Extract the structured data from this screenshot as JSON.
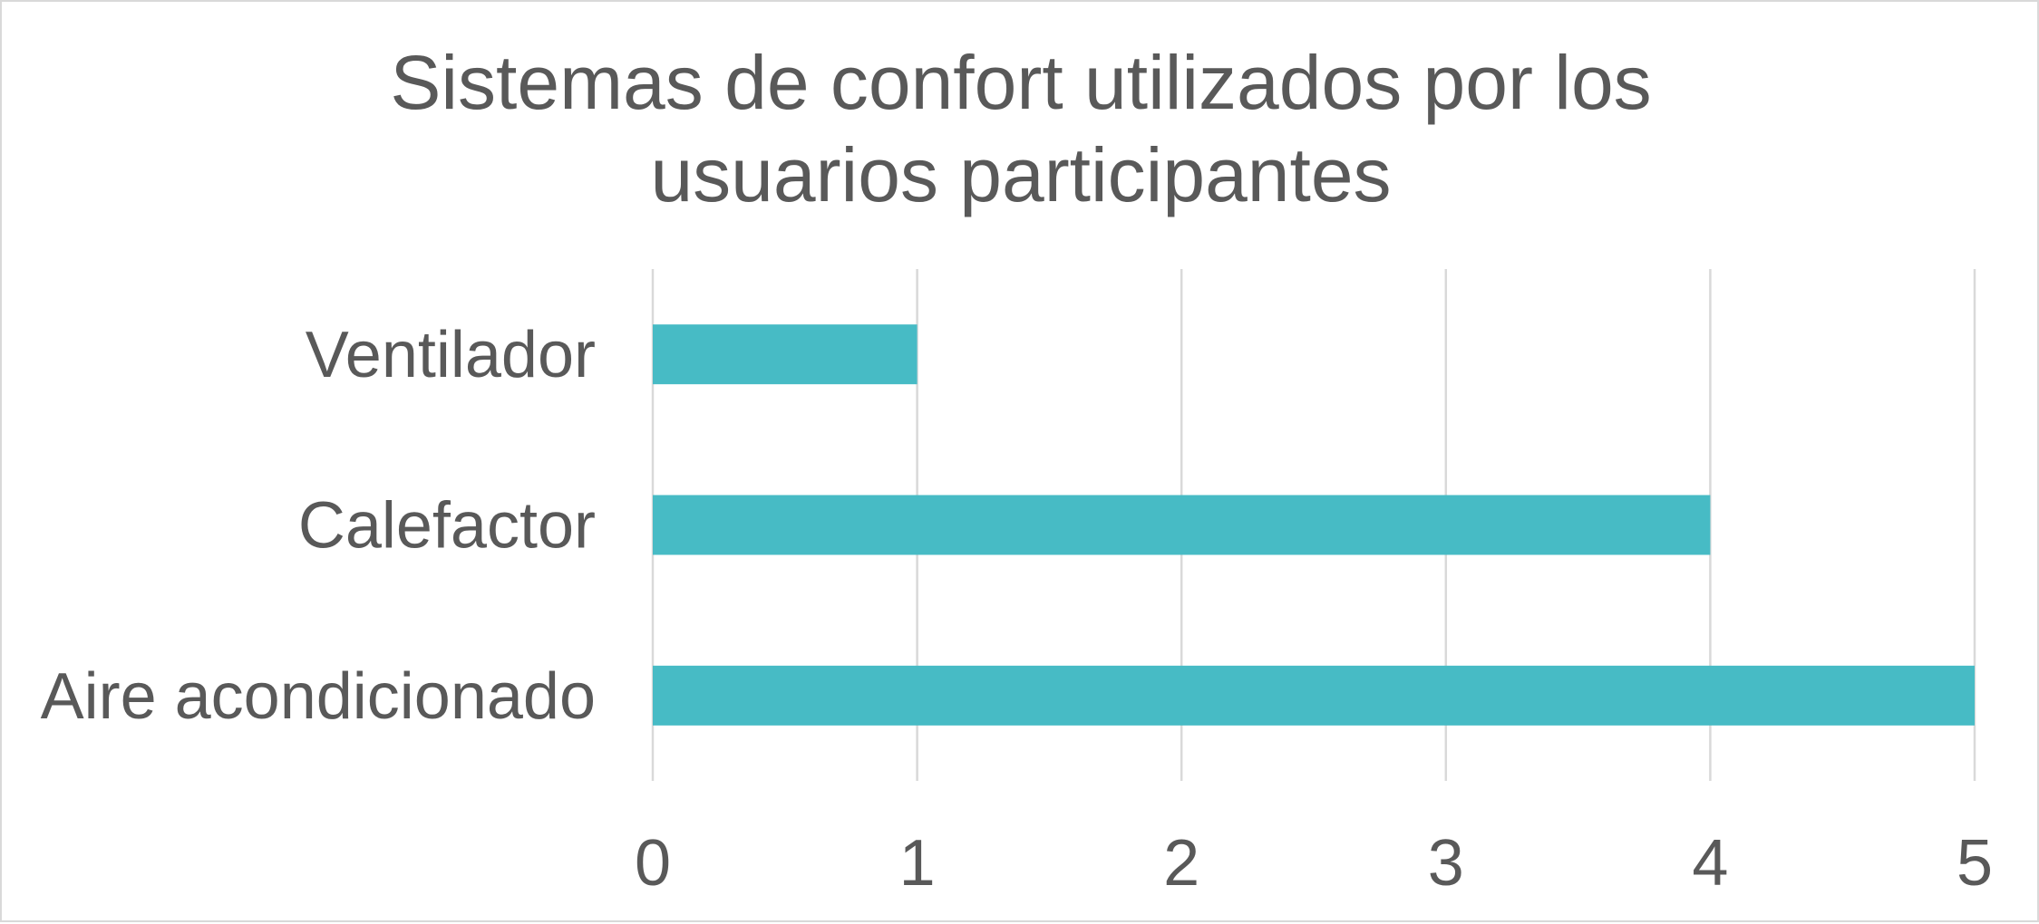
{
  "chart_data": {
    "type": "bar",
    "orientation": "horizontal",
    "title_lines": [
      "Sistemas de confort utilizados por los",
      "usuarios participantes"
    ],
    "categories": [
      "Ventilador",
      "Calefactor",
      "Aire acondicionado"
    ],
    "values": [
      1,
      4,
      5
    ],
    "xlim": [
      0,
      5
    ],
    "x_ticks": [
      "0",
      "1",
      "2",
      "3",
      "4",
      "5"
    ],
    "grid": "vertical",
    "legend": "none",
    "bar_color": "#47BBC5"
  }
}
